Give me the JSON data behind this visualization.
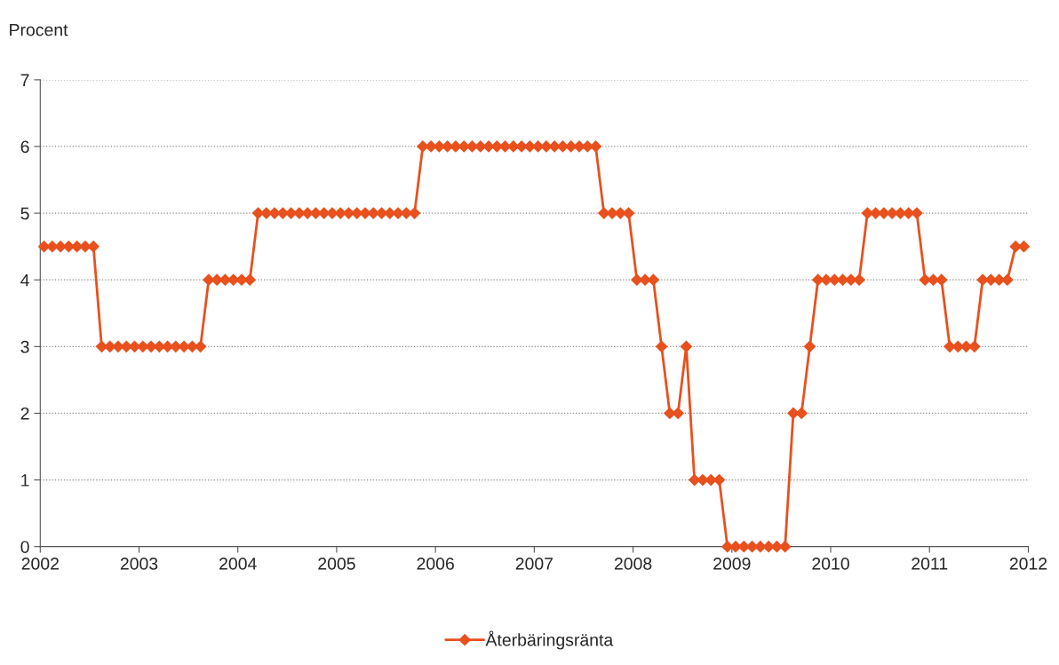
{
  "chart_data": {
    "type": "line",
    "ylabel": "Procent",
    "x": [
      "2002-01-15",
      "2002-02-15",
      "2002-03-15",
      "2002-04-15",
      "2002-05-15",
      "2002-06-15",
      "2002-07-15",
      "2002-08-15",
      "2002-09-15",
      "2002-10-15",
      "2002-11-15",
      "2002-12-15",
      "2003-01-15",
      "2003-02-15",
      "2003-03-15",
      "2003-04-15",
      "2003-05-15",
      "2003-06-15",
      "2003-07-15",
      "2003-08-15",
      "2003-09-15",
      "2003-10-15",
      "2003-11-15",
      "2003-12-15",
      "2004-01-15",
      "2004-02-15",
      "2004-03-15",
      "2004-04-15",
      "2004-05-15",
      "2004-06-15",
      "2004-07-15",
      "2004-08-15",
      "2004-09-15",
      "2004-10-15",
      "2004-11-15",
      "2004-12-15",
      "2005-01-15",
      "2005-02-15",
      "2005-03-15",
      "2005-04-15",
      "2005-05-15",
      "2005-06-15",
      "2005-07-15",
      "2005-08-15",
      "2005-09-15",
      "2005-10-15",
      "2005-11-15",
      "2005-12-15",
      "2006-01-15",
      "2006-02-15",
      "2006-03-15",
      "2006-04-15",
      "2006-05-15",
      "2006-06-15",
      "2006-07-15",
      "2006-08-15",
      "2006-09-15",
      "2006-10-15",
      "2006-11-15",
      "2006-12-15",
      "2007-01-15",
      "2007-02-15",
      "2007-03-15",
      "2007-04-15",
      "2007-05-15",
      "2007-06-15",
      "2007-07-15",
      "2007-08-15",
      "2007-09-15",
      "2007-10-15",
      "2007-11-15",
      "2007-12-15",
      "2008-01-15",
      "2008-02-15",
      "2008-03-15",
      "2008-04-15",
      "2008-05-15",
      "2008-06-15",
      "2008-07-15",
      "2008-08-15",
      "2008-09-15",
      "2008-10-15",
      "2008-11-15",
      "2008-12-15",
      "2009-01-15",
      "2009-02-15",
      "2009-03-15",
      "2009-04-15",
      "2009-05-15",
      "2009-06-15",
      "2009-07-15",
      "2009-08-15",
      "2009-09-15",
      "2009-10-15",
      "2009-11-15",
      "2009-12-15",
      "2010-01-15",
      "2010-02-15",
      "2010-03-15",
      "2010-04-15",
      "2010-05-15",
      "2010-06-15",
      "2010-07-15",
      "2010-08-15",
      "2010-09-15",
      "2010-10-15",
      "2010-11-15",
      "2010-12-15",
      "2011-01-15",
      "2011-02-15",
      "2011-03-15",
      "2011-04-15",
      "2011-05-15",
      "2011-06-15",
      "2011-07-15",
      "2011-08-15",
      "2011-09-15",
      "2011-10-15",
      "2011-11-15",
      "2011-12-15"
    ],
    "series": [
      {
        "name": "Återbäringsränta",
        "color": "#e8501e",
        "values": [
          4.5,
          4.5,
          4.5,
          4.5,
          4.5,
          4.5,
          4.5,
          3,
          3,
          3,
          3,
          3,
          3,
          3,
          3,
          3,
          3,
          3,
          3,
          3,
          4,
          4,
          4,
          4,
          4,
          4,
          5,
          5,
          5,
          5,
          5,
          5,
          5,
          5,
          5,
          5,
          5,
          5,
          5,
          5,
          5,
          5,
          5,
          5,
          5,
          5,
          6,
          6,
          6,
          6,
          6,
          6,
          6,
          6,
          6,
          6,
          6,
          6,
          6,
          6,
          6,
          6,
          6,
          6,
          6,
          6,
          6,
          6,
          5,
          5,
          5,
          5,
          4,
          4,
          4,
          3,
          2,
          2,
          3,
          1,
          1,
          1,
          1,
          0,
          0,
          0,
          0,
          0,
          0,
          0,
          0,
          2,
          2,
          3,
          4,
          4,
          4,
          4,
          4,
          4,
          5,
          5,
          5,
          5,
          5,
          5,
          5,
          4,
          4,
          4,
          3,
          3,
          3,
          3,
          4,
          4,
          4,
          4,
          4.5,
          4.5
        ]
      }
    ],
    "xlim": [
      "2002",
      "2012"
    ],
    "xticks": [
      "2002",
      "2003",
      "2004",
      "2005",
      "2006",
      "2007",
      "2008",
      "2009",
      "2010",
      "2011",
      "2012"
    ],
    "ylim": [
      0,
      7
    ],
    "yticks": [
      0,
      1,
      2,
      3,
      4,
      5,
      6,
      7
    ],
    "grid": "y",
    "legend": "bottom",
    "marker": "diamond",
    "line_style": "solid"
  }
}
